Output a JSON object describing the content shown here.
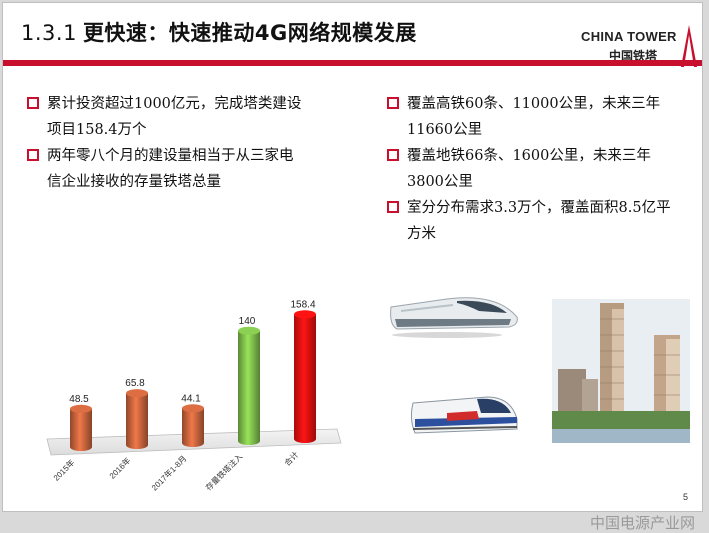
{
  "slide": {
    "number": "1.3.1",
    "title": "更快速：快速推动4G网络规模发展",
    "logo_en": "CHINA TOWER",
    "logo_cn": "中国铁塔",
    "page_number": "5"
  },
  "left_bullets": [
    {
      "line1": "累计投资超过1000亿元，完成塔类建设",
      "line2": "项目158.4万个"
    },
    {
      "line1": "两年零八个月的建设量相当于从三家电",
      "line2": "信企业接收的存量铁塔总量"
    }
  ],
  "right_bullets": [
    {
      "line1": "覆盖高铁60条、11000公里，未来三年",
      "line2": "11660公里"
    },
    {
      "line1": "覆盖地铁66条、1600公里，未来三年",
      "line2": "3800公里"
    },
    {
      "line1": "室分分布需求3.3万个，覆盖面积8.5亿平",
      "line2": "方米"
    }
  ],
  "chart_data": {
    "type": "bar",
    "categories": [
      "2015年",
      "2016年",
      "2017年1-8月",
      "存量铁塔注入",
      "合计"
    ],
    "values": [
      48.5,
      65.8,
      44.1,
      140,
      158.4
    ],
    "colors": [
      "#c0603a",
      "#c0603a",
      "#c0603a",
      "#7ab648",
      "#e01010"
    ],
    "ylim": [
      0,
      160
    ]
  },
  "watermark": "中国电源产业网"
}
